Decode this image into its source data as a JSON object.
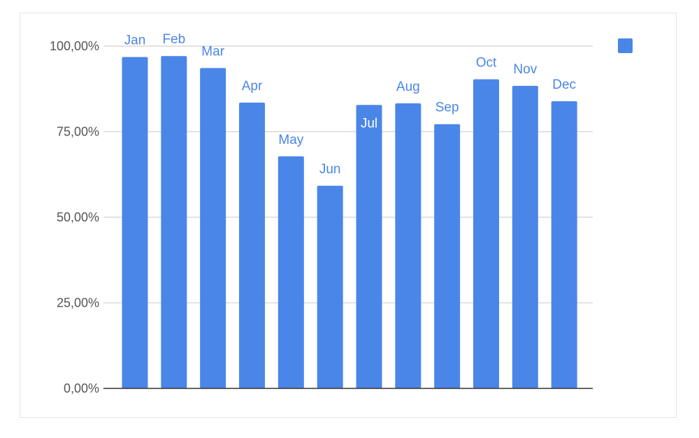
{
  "chart_data": {
    "type": "bar",
    "categories": [
      "Jan",
      "Feb",
      "Mar",
      "Apr",
      "May",
      "Jun",
      "Jul",
      "Aug",
      "Sep",
      "Oct",
      "Nov",
      "Dec"
    ],
    "series": [
      {
        "values": [
          96.8,
          97.1,
          93.6,
          83.5,
          67.8,
          59.2,
          82.8,
          83.3,
          77.2,
          90.3,
          88.4,
          83.9
        ]
      }
    ],
    "data_labels": [
      "Jan",
      "Feb",
      "Mar",
      "Apr",
      "May",
      "Jun",
      "Jul",
      "Aug",
      "Sep",
      "Oct",
      "Nov",
      "Dec"
    ],
    "title": "",
    "xlabel": "",
    "ylabel": "",
    "ylim": [
      0,
      100
    ],
    "yticks": [
      0,
      25,
      50,
      75,
      100
    ],
    "ytick_labels": [
      "0,00%",
      "25,00%",
      "50,00%",
      "75,00%",
      "100,00%"
    ],
    "grid": true,
    "legend": {
      "position": "right",
      "entries": [
        ""
      ]
    },
    "colors": {
      "bar": "#4a86e8",
      "grid": "#d9d9d9",
      "axis": "#333333"
    }
  }
}
